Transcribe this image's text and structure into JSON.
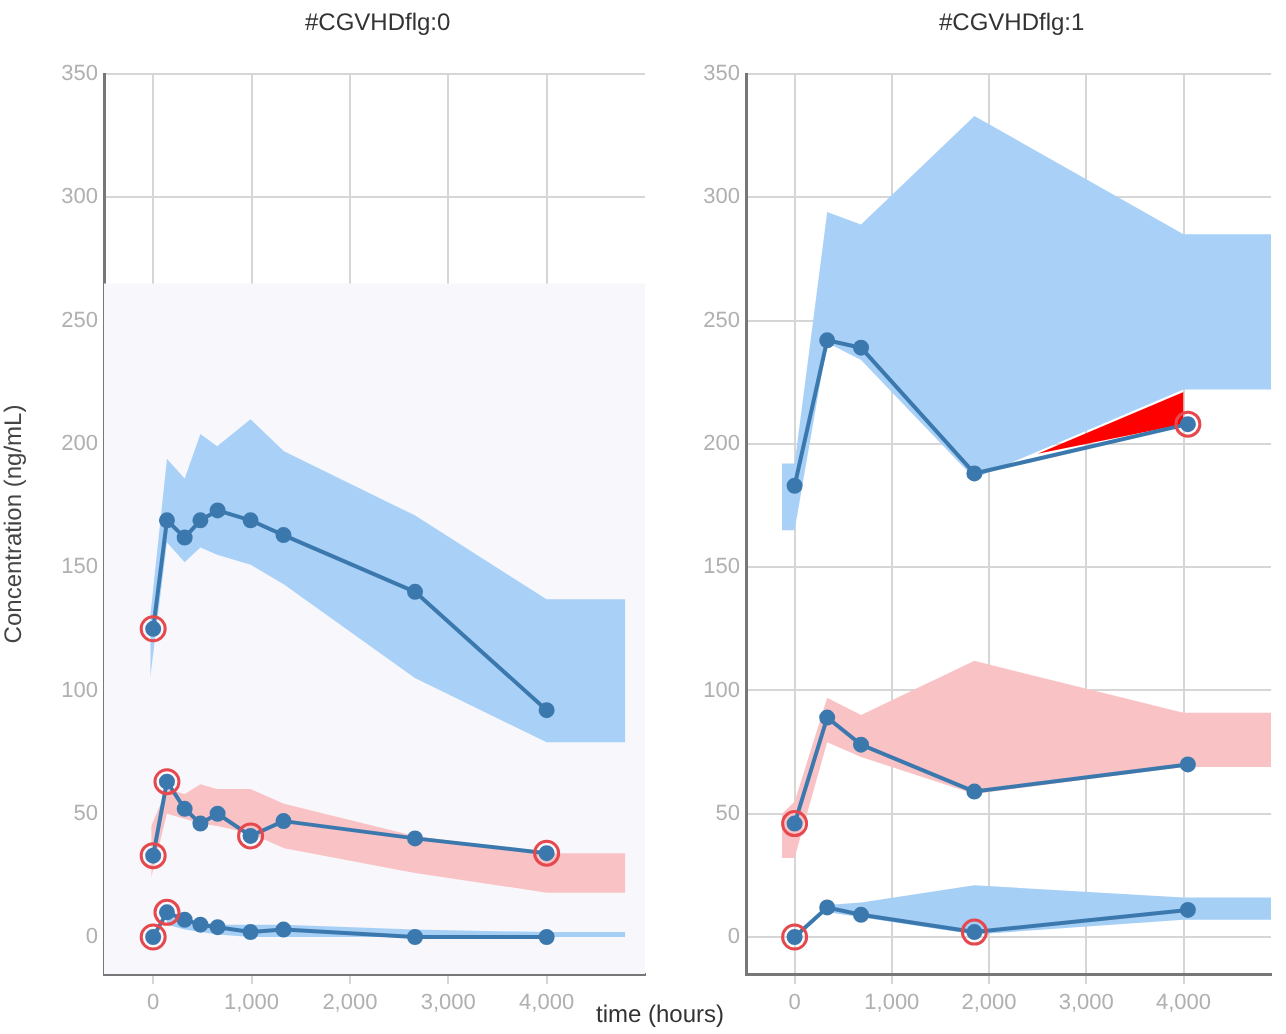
{
  "chart_data": [
    {
      "type": "line",
      "title": "#CGVHDflg:0",
      "ylabel": "Concentration (ng/mL)",
      "xlabel": "time (hours)",
      "xlim": [
        -500,
        5000
      ],
      "xticks": [
        {
          "value": 0,
          "label": "0"
        },
        {
          "value": 1000,
          "label": "1,000"
        },
        {
          "value": 2000,
          "label": "2,000"
        },
        {
          "value": 3000,
          "label": "3,000"
        },
        {
          "value": 4000,
          "label": "4,000"
        }
      ],
      "ylim": [
        -15,
        350
      ],
      "yticks": [
        0,
        50,
        100,
        150,
        200,
        250,
        300,
        350
      ],
      "grid": true,
      "legend": false,
      "marker": "circle",
      "bands": [
        {
          "axis": "y",
          "from": -15,
          "to": 265,
          "color": "#f8f8fc"
        }
      ],
      "series": [
        {
          "type": "area",
          "color": "#a9d1f7",
          "x": [
            -30,
            140,
            320,
            480,
            650,
            990,
            1330,
            2660,
            4000,
            4800
          ],
          "values": [
            null,
            null,
            null,
            null,
            null,
            null,
            null,
            null,
            null,
            null
          ],
          "lower": [
            105,
            160,
            152,
            158,
            155,
            151,
            143,
            105,
            79,
            79
          ],
          "upper": [
            130,
            194,
            186,
            204,
            199,
            210,
            197,
            171,
            137,
            137
          ]
        },
        {
          "type": "area",
          "color": "#f9c3c6",
          "x": [
            -20,
            140,
            320,
            480,
            650,
            990,
            1330,
            2660,
            4000,
            4800
          ],
          "values": [
            null,
            null,
            null,
            null,
            null,
            null,
            null,
            null,
            null,
            null
          ],
          "lower": [
            24,
            50,
            48,
            46,
            45,
            42,
            36,
            26,
            18,
            18
          ],
          "upper": [
            45,
            60,
            58,
            62,
            60,
            60,
            54,
            41,
            34,
            34
          ]
        },
        {
          "type": "area",
          "color": "#a6cff6",
          "x": [
            140,
            320,
            650,
            990,
            1330,
            2660,
            4000,
            4800
          ],
          "values": [
            null,
            null,
            null,
            null,
            null,
            null,
            null,
            null
          ],
          "lower": [
            5,
            3,
            1,
            0,
            0,
            0,
            0,
            0
          ],
          "upper": [
            9,
            7,
            5,
            5,
            5,
            3,
            2,
            2
          ]
        },
        {
          "color": "#3b78ad",
          "x": [
            0,
            140,
            320,
            480,
            655,
            990,
            1325,
            2662,
            4000
          ],
          "values": [
            125,
            169,
            162,
            169,
            173,
            169,
            163,
            140,
            92
          ]
        },
        {
          "color": "#3b78ad",
          "x": [
            0,
            140,
            320,
            480,
            655,
            990,
            1325,
            2662,
            4000
          ],
          "values": [
            33,
            63,
            52,
            46,
            50,
            41,
            47,
            40,
            34
          ]
        },
        {
          "color": "#3b78ad",
          "x": [
            0,
            140,
            320,
            480,
            655,
            990,
            1325,
            2662,
            4000
          ],
          "values": [
            0,
            10,
            7,
            5,
            4,
            2,
            3,
            0,
            0
          ]
        },
        {
          "type": "scatter",
          "color": "#e5484d",
          "marker": "circle",
          "x": [
            0,
            0,
            140,
            990,
            4000,
            0,
            140
          ],
          "values": [
            125,
            33,
            63,
            41,
            34,
            0,
            10
          ]
        }
      ]
    },
    {
      "type": "line",
      "title": "#CGVHDflg:1",
      "xlim": [
        -500,
        4900
      ],
      "xticks": [
        {
          "value": 0,
          "label": "0"
        },
        {
          "value": 1000,
          "label": "1,000"
        },
        {
          "value": 2000,
          "label": "2,000"
        },
        {
          "value": 3000,
          "label": "3,000"
        },
        {
          "value": 4000,
          "label": "4,000"
        }
      ],
      "ylim": [
        -15,
        350
      ],
      "yticks": [
        0,
        50,
        100,
        150,
        200,
        250,
        300,
        350
      ],
      "grid": true,
      "legend": false,
      "marker": "circle",
      "series": [
        {
          "type": "area",
          "color": "#a9d1f7",
          "x": [
            -130,
            0,
            335,
            683,
            1849,
            4000,
            4900
          ],
          "values": [
            null,
            null,
            null,
            null,
            null,
            null,
            null
          ],
          "lower": [
            165,
            165,
            241,
            234,
            186,
            222,
            222
          ],
          "upper": [
            192,
            192,
            294,
            289,
            333,
            285,
            285
          ]
        },
        {
          "type": "area",
          "color": "#ff0000",
          "x": [
            2500,
            4000
          ],
          "values": [
            null,
            null
          ],
          "lower": [
            196,
            208
          ],
          "upper": [
            196,
            221
          ]
        },
        {
          "type": "area",
          "color": "#f9c3c6",
          "x": [
            -130,
            0,
            335,
            683,
            1849,
            4000,
            4900
          ],
          "values": [
            null,
            null,
            null,
            null,
            null,
            null,
            null
          ],
          "lower": [
            32,
            32,
            79,
            73,
            58,
            69,
            69
          ],
          "upper": [
            50,
            55,
            97,
            90,
            112,
            91,
            91
          ]
        },
        {
          "type": "area",
          "color": "#a6cff6",
          "x": [
            335,
            683,
            1849,
            4000,
            4900
          ],
          "values": [
            null,
            null,
            null,
            null,
            null
          ],
          "lower": [
            10,
            8,
            1,
            7,
            7
          ],
          "upper": [
            13,
            14,
            21,
            16,
            16
          ]
        },
        {
          "color": "#3b78ad",
          "x": [
            0,
            335,
            683,
            1849,
            4045
          ],
          "values": [
            183,
            242,
            239,
            188,
            208
          ]
        },
        {
          "color": "#3b78ad",
          "x": [
            0,
            335,
            683,
            1849,
            4045
          ],
          "values": [
            46,
            89,
            78,
            59,
            70
          ]
        },
        {
          "color": "#3b78ad",
          "x": [
            0,
            335,
            683,
            1849,
            4045
          ],
          "values": [
            0,
            12,
            9,
            2,
            11
          ]
        },
        {
          "type": "scatter",
          "color": "#e5484d",
          "marker": "circle",
          "x": [
            4045,
            0,
            0,
            1849
          ],
          "values": [
            208,
            46,
            0,
            2
          ]
        }
      ]
    }
  ]
}
